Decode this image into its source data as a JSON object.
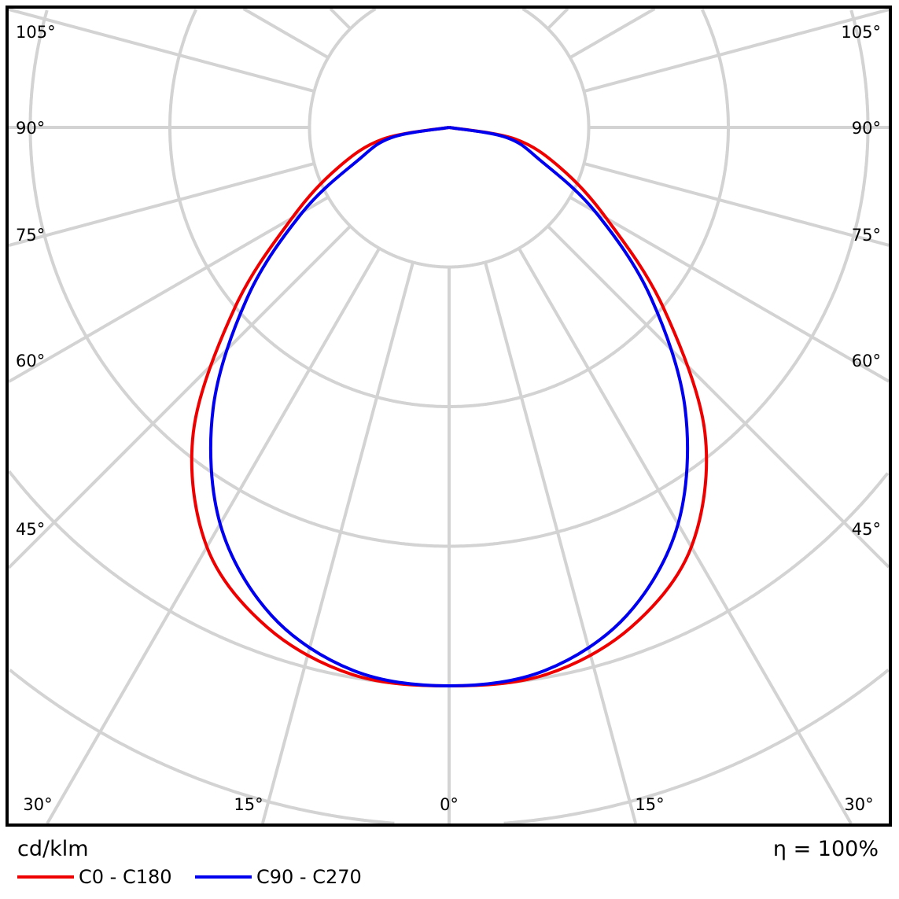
{
  "chart_data": {
    "type": "line",
    "projection": "polar",
    "unit_label": "cd/klm",
    "efficiency_label": "η = 100%",
    "radial_scale_note": "radial values in grid-ring units (ring labels not visible)",
    "radial_rings": 6,
    "angle_step_deg": 15,
    "angle_labels_left": [
      "105°",
      "90°",
      "75°",
      "60°",
      "45°"
    ],
    "angle_labels_right": [
      "105°",
      "90°",
      "75°",
      "60°",
      "45°"
    ],
    "angle_labels_bottom": [
      "30°",
      "15°",
      "0°",
      "15°",
      "30°"
    ],
    "gamma_deg": [
      0,
      10,
      20,
      30,
      40,
      50,
      60,
      70,
      80,
      90
    ],
    "series": [
      {
        "name": "C0 - C180",
        "color": "#ee0000",
        "values": [
          4.0,
          3.98,
          3.81,
          3.47,
          2.85,
          2.0,
          1.3,
          0.85,
          0.48,
          0.0
        ]
      },
      {
        "name": "C90 - C270",
        "color": "#0000ee",
        "values": [
          4.0,
          3.95,
          3.72,
          3.28,
          2.63,
          1.88,
          1.21,
          0.7,
          0.42,
          0.0
        ]
      }
    ],
    "grid": true,
    "grid_color": "#d3d3d3",
    "legend_position": "bottom-left"
  }
}
